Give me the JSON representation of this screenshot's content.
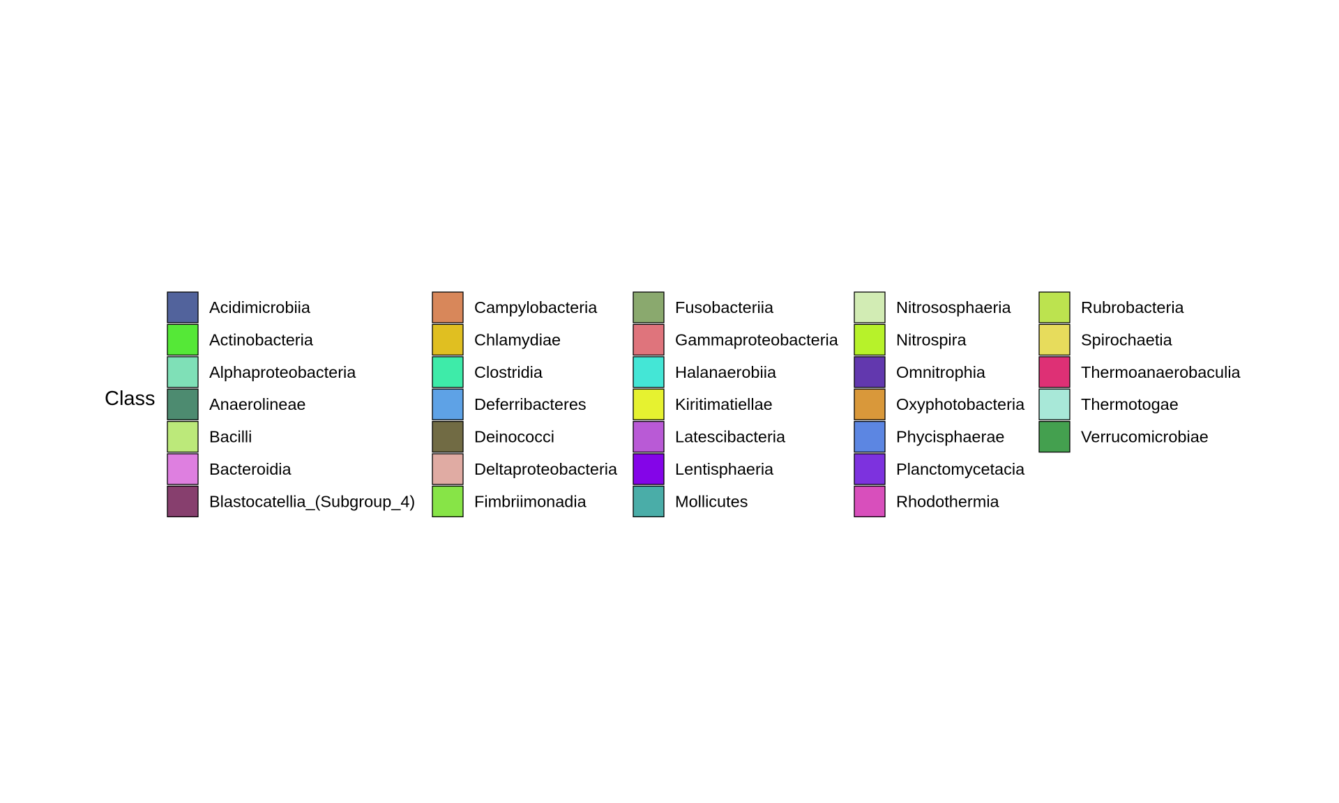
{
  "chart_data": {
    "type": "legend",
    "title": "Class",
    "columns": [
      [
        {
          "label": "Acidimicrobiia",
          "color": "#52639c"
        },
        {
          "label": "Actinobacteria",
          "color": "#55e837"
        },
        {
          "label": "Alphaproteobacteria",
          "color": "#7fe0b7"
        },
        {
          "label": "Anaerolineae",
          "color": "#4d8b70"
        },
        {
          "label": "Bacilli",
          "color": "#bce97a"
        },
        {
          "label": "Bacteroidia",
          "color": "#de7fe0"
        },
        {
          "label": "Blastocatellia_(Subgroup_4)",
          "color": "#873f6e"
        }
      ],
      [
        {
          "label": "Campylobacteria",
          "color": "#d8875a"
        },
        {
          "label": "Chlamydiae",
          "color": "#e0bf21"
        },
        {
          "label": "Clostridia",
          "color": "#3eeba9"
        },
        {
          "label": "Deferribacteres",
          "color": "#5ea2e6"
        },
        {
          "label": "Deinococci",
          "color": "#716b44"
        },
        {
          "label": "Deltaproteobacteria",
          "color": "#e0aba3"
        },
        {
          "label": "Fimbriimonadia",
          "color": "#87e447"
        }
      ],
      [
        {
          "label": "Fusobacteriia",
          "color": "#8aa96e"
        },
        {
          "label": "Gammaproteobacteria",
          "color": "#df747c"
        },
        {
          "label": "Halanaerobiia",
          "color": "#44e6d6"
        },
        {
          "label": "Kiritimatiellae",
          "color": "#e6f230"
        },
        {
          "label": "Latescibacteria",
          "color": "#b95ad6"
        },
        {
          "label": "Lentisphaeria",
          "color": "#8405e8"
        },
        {
          "label": "Mollicutes",
          "color": "#4aada8"
        }
      ],
      [
        {
          "label": "Nitrososphaeria",
          "color": "#d2ecb4"
        },
        {
          "label": "Nitrospira",
          "color": "#b7f22a"
        },
        {
          "label": "Omnitrophia",
          "color": "#6238ae"
        },
        {
          "label": "Oxyphotobacteria",
          "color": "#d9983a"
        },
        {
          "label": "Phycisphaerae",
          "color": "#5c86e2"
        },
        {
          "label": "Planctomycetacia",
          "color": "#7d32de"
        },
        {
          "label": "Rhodothermia",
          "color": "#d84fbc"
        }
      ],
      [
        {
          "label": "Rubrobacteria",
          "color": "#bce34f"
        },
        {
          "label": "Spirochaetia",
          "color": "#e7dc5c"
        },
        {
          "label": "Thermoanaerobaculia",
          "color": "#de3075"
        },
        {
          "label": "Thermotogae",
          "color": "#a8e8d8"
        },
        {
          "label": "Verrucomicrobiae",
          "color": "#44a04f"
        }
      ]
    ]
  }
}
